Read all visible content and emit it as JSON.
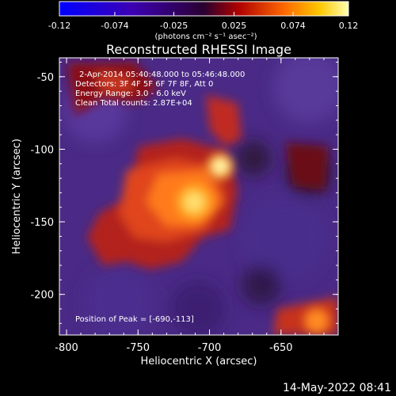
{
  "colorbar": {
    "ticks": [
      "-0.12",
      "-0.074",
      "-0.025",
      "0.025",
      "0.074",
      "0.12"
    ],
    "units": "(photons cm⁻² s⁻¹ asec⁻²)",
    "range": [
      -0.12,
      0.12
    ]
  },
  "plot": {
    "title": "Reconstructed RHESSI Image",
    "xlabel": "Heliocentric X (arcsec)",
    "ylabel": "Heliocentric Y (arcsec)",
    "xticks": [
      "-800",
      "-750",
      "-700",
      "-650"
    ],
    "yticks": [
      "-50",
      "-100",
      "-150",
      "-200"
    ],
    "xrange": [
      -805,
      -610
    ],
    "yrange": [
      -228,
      -37
    ],
    "annotations": [
      "2-Apr-2014 05:40:48.000 to 05:46:48.000",
      "Detectors: 3F 4F 5F 6F 7F 8F, Att 0",
      "Energy Range: 3.0 - 6.0 keV",
      "Clean     Total counts: 2.87E+04"
    ],
    "peak_label": "Position of Peak = [-690,-113]",
    "peak": {
      "x": -690,
      "y": -113
    }
  },
  "footer": {
    "date": "14-May-2022 08:41"
  }
}
